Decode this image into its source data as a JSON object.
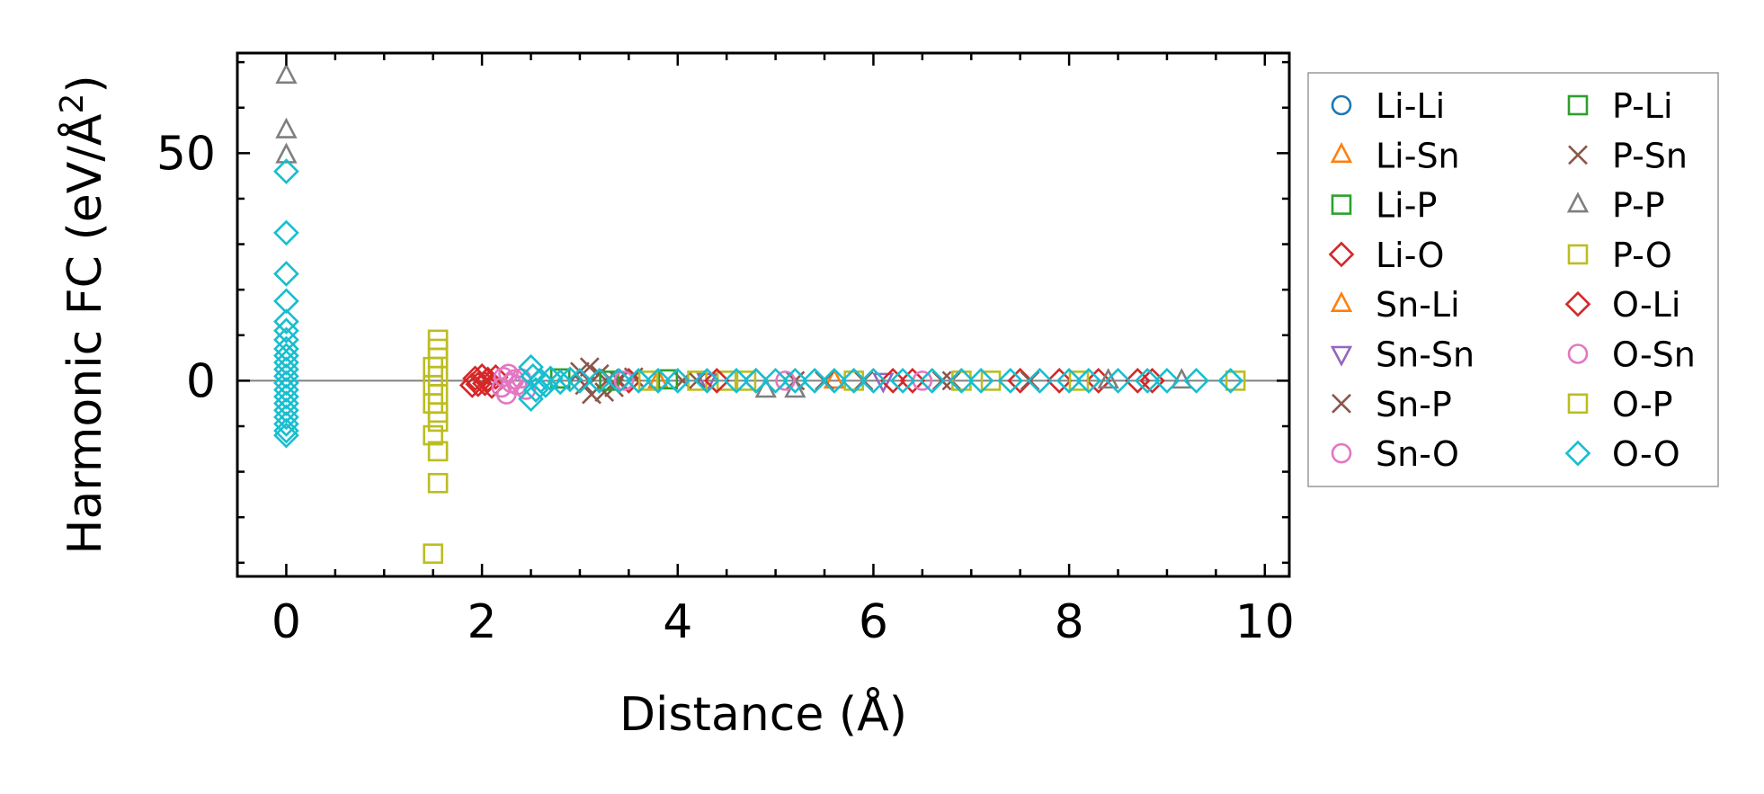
{
  "chart_data": {
    "type": "scatter",
    "title": "",
    "xlabel": "Distance (Å)",
    "ylabel_main": "Harmonic FC (eV/Å",
    "ylabel_sup": "2",
    "ylabel_close": ")",
    "xlim": [
      -0.5,
      10.25
    ],
    "ylim": [
      -43,
      72
    ],
    "x_ticks": [
      0,
      2,
      4,
      6,
      8,
      10
    ],
    "x_tick_labels": [
      "0",
      "2",
      "4",
      "6",
      "8",
      "10"
    ],
    "y_ticks": [
      0,
      50
    ],
    "y_tick_labels": [
      "0",
      "50"
    ],
    "x_minor_step": 0.5,
    "y_minor_step": 10,
    "zero_line": 0,
    "grid": false,
    "legend_position": "outside-right",
    "legend_columns": 2,
    "series": [
      {
        "name": "Li-Li",
        "marker": "circle",
        "color": "#1f77b4",
        "points": []
      },
      {
        "name": "Li-Sn",
        "marker": "triangle-up",
        "color": "#ff7f0e",
        "points": []
      },
      {
        "name": "Li-P",
        "marker": "square",
        "color": "#2ca02c",
        "points": []
      },
      {
        "name": "Li-O",
        "marker": "diamond",
        "color": "#d62728",
        "points": [
          [
            1.9,
            -1
          ],
          [
            1.93,
            0.5
          ],
          [
            1.96,
            -0.8
          ],
          [
            2.0,
            1
          ],
          [
            2.03,
            -0.6
          ],
          [
            2.06,
            0.3
          ],
          [
            2.1,
            -1.2
          ],
          [
            2.14,
            0.8
          ],
          [
            3.5,
            0
          ],
          [
            4.8,
            0
          ],
          [
            6.4,
            0
          ],
          [
            7.5,
            0
          ],
          [
            8.3,
            0
          ],
          [
            8.85,
            0
          ]
        ]
      },
      {
        "name": "Sn-Li",
        "marker": "triangle-up",
        "color": "#ff7f0e",
        "points": [
          [
            3.8,
            0
          ],
          [
            5.6,
            0
          ]
        ]
      },
      {
        "name": "Sn-Sn",
        "marker": "triangle-down",
        "color": "#9467bd",
        "points": [
          [
            4.3,
            0
          ],
          [
            6.1,
            0
          ]
        ]
      },
      {
        "name": "Sn-P",
        "marker": "x",
        "color": "#8c564b",
        "points": [
          [
            3.0,
            2
          ],
          [
            3.05,
            -1
          ],
          [
            3.1,
            3
          ],
          [
            3.12,
            -3
          ],
          [
            3.2,
            1.5
          ],
          [
            3.25,
            -2.5
          ],
          [
            3.3,
            0.5
          ],
          [
            3.35,
            -1.5
          ],
          [
            3.4,
            0
          ],
          [
            3.55,
            0.8
          ],
          [
            4.05,
            0
          ],
          [
            5.2,
            0
          ],
          [
            5.9,
            0
          ],
          [
            6.7,
            0
          ],
          [
            7.6,
            0
          ]
        ]
      },
      {
        "name": "Sn-O",
        "marker": "circle",
        "color": "#e377c2",
        "points": [
          [
            2.2,
            -1.5
          ],
          [
            2.22,
            0.8
          ],
          [
            2.25,
            -3
          ],
          [
            2.27,
            1.5
          ],
          [
            2.3,
            -0.5
          ],
          [
            2.33,
            0.3
          ],
          [
            2.36,
            -1
          ],
          [
            2.4,
            0.5
          ],
          [
            2.45,
            -2
          ]
        ]
      },
      {
        "name": "P-Li",
        "marker": "square",
        "color": "#2ca02c",
        "points": [
          [
            2.8,
            0.5
          ],
          [
            3.3,
            0
          ],
          [
            3.9,
            0.3
          ]
        ]
      },
      {
        "name": "P-Sn",
        "marker": "x",
        "color": "#8c564b",
        "points": [
          [
            4.2,
            0
          ],
          [
            5.5,
            0
          ],
          [
            6.8,
            0
          ]
        ]
      },
      {
        "name": "P-P",
        "marker": "triangle-up",
        "color": "#7f7f7f",
        "points": [
          [
            0,
            67
          ],
          [
            0,
            55
          ],
          [
            0,
            49.5
          ],
          [
            5.2,
            -2
          ],
          [
            4.9,
            -2
          ],
          [
            9.15,
            0
          ],
          [
            8.4,
            0
          ]
        ]
      },
      {
        "name": "P-O",
        "marker": "square",
        "color": "#bcbd22",
        "points": [
          [
            1.5,
            -38
          ],
          [
            1.55,
            -22.5
          ],
          [
            1.55,
            -15.5
          ],
          [
            1.5,
            -12
          ],
          [
            1.55,
            -9
          ],
          [
            1.55,
            -7
          ],
          [
            1.5,
            -5
          ],
          [
            1.55,
            -3
          ],
          [
            1.5,
            -1
          ],
          [
            1.55,
            1
          ],
          [
            1.5,
            3
          ],
          [
            1.55,
            5
          ],
          [
            1.55,
            7
          ],
          [
            1.55,
            9
          ],
          [
            4.2,
            0
          ],
          [
            4.5,
            0
          ],
          [
            5.8,
            0
          ],
          [
            7.2,
            0
          ],
          [
            9.7,
            0
          ]
        ]
      },
      {
        "name": "O-Li",
        "marker": "diamond",
        "color": "#d62728",
        "points": [
          [
            4.4,
            0
          ],
          [
            6.2,
            0
          ],
          [
            7.9,
            0
          ],
          [
            8.7,
            0
          ]
        ]
      },
      {
        "name": "O-Sn",
        "marker": "circle",
        "color": "#e377c2",
        "points": [
          [
            3.45,
            0
          ],
          [
            5.1,
            0
          ],
          [
            6.5,
            0
          ]
        ]
      },
      {
        "name": "O-P",
        "marker": "square",
        "color": "#bcbd22",
        "points": [
          [
            3.7,
            0
          ],
          [
            4.7,
            0
          ],
          [
            6.9,
            0
          ],
          [
            8.1,
            0
          ]
        ]
      },
      {
        "name": "O-O",
        "marker": "diamond",
        "color": "#17becf",
        "points": [
          [
            0,
            46
          ],
          [
            0,
            32.5
          ],
          [
            0,
            23.5
          ],
          [
            0,
            17.5
          ],
          [
            0,
            13
          ],
          [
            0,
            11
          ],
          [
            0,
            9
          ],
          [
            0,
            7
          ],
          [
            0,
            5.5
          ],
          [
            0,
            4
          ],
          [
            0,
            2.5
          ],
          [
            0,
            1
          ],
          [
            0,
            -0.5
          ],
          [
            0,
            -2
          ],
          [
            0,
            -3.5
          ],
          [
            0,
            -5
          ],
          [
            0,
            -6.5
          ],
          [
            0,
            -8
          ],
          [
            0,
            -9.5
          ],
          [
            0,
            -11
          ],
          [
            0,
            -12
          ],
          [
            2.5,
            3
          ],
          [
            2.5,
            -4
          ],
          [
            2.52,
            1
          ],
          [
            2.55,
            -2
          ],
          [
            2.6,
            0
          ],
          [
            2.65,
            -1
          ],
          [
            2.7,
            0.5
          ],
          [
            2.8,
            -0.3
          ],
          [
            2.9,
            0.3
          ],
          [
            3.0,
            0
          ],
          [
            3.2,
            0
          ],
          [
            3.4,
            0
          ],
          [
            3.6,
            0
          ],
          [
            3.8,
            0
          ],
          [
            4.0,
            0
          ],
          [
            4.3,
            0
          ],
          [
            4.6,
            0
          ],
          [
            4.8,
            0
          ],
          [
            5.0,
            0
          ],
          [
            5.2,
            0
          ],
          [
            5.4,
            0
          ],
          [
            5.6,
            0
          ],
          [
            5.8,
            0
          ],
          [
            6.0,
            0
          ],
          [
            6.3,
            0
          ],
          [
            6.6,
            0
          ],
          [
            6.9,
            0
          ],
          [
            7.1,
            0
          ],
          [
            7.4,
            0
          ],
          [
            7.7,
            0
          ],
          [
            8.0,
            0
          ],
          [
            8.2,
            0
          ],
          [
            8.5,
            0
          ],
          [
            8.8,
            0
          ],
          [
            9.0,
            0
          ],
          [
            9.3,
            0
          ],
          [
            9.65,
            0
          ]
        ]
      }
    ]
  }
}
